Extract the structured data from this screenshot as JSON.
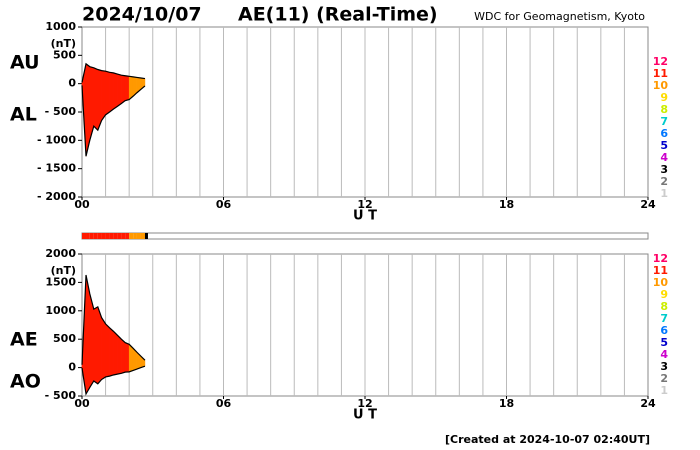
{
  "header": {
    "date": "2024/10/07",
    "title": "AE(11) (Real-Time)",
    "source": "WDC for Geomagnetism, Kyoto"
  },
  "footer": "[Created at 2024-10-07 02:40UT]",
  "legend": [
    {
      "value": 12,
      "color": "#ff0066"
    },
    {
      "value": 11,
      "color": "#ff1a00"
    },
    {
      "value": 10,
      "color": "#ff9900"
    },
    {
      "value": 9,
      "color": "#ffdd00"
    },
    {
      "value": 8,
      "color": "#ccee00"
    },
    {
      "value": 7,
      "color": "#00cccc"
    },
    {
      "value": 6,
      "color": "#0077ff"
    },
    {
      "value": 5,
      "color": "#0000cc"
    },
    {
      "value": 4,
      "color": "#cc00cc"
    },
    {
      "value": 3,
      "color": "#000000"
    },
    {
      "value": 2,
      "color": "#777777"
    },
    {
      "value": 1,
      "color": "#cccccc"
    }
  ],
  "chart_data": [
    {
      "type": "area",
      "ylabel": "(nT)",
      "xlabel": "U T",
      "x": [
        0,
        0.17,
        0.33,
        0.5,
        0.67,
        0.83,
        1,
        1.17,
        1.33,
        1.5,
        1.67,
        1.83,
        2,
        2.17,
        2.33,
        2.5,
        2.67
      ],
      "stations": [
        11,
        11,
        11,
        11,
        11,
        11,
        11,
        11,
        11,
        11,
        11,
        11,
        10,
        10,
        10,
        10,
        3
      ],
      "series": [
        {
          "name": "AU",
          "color": "#000000",
          "values": [
            20,
            350,
            300,
            280,
            250,
            230,
            220,
            200,
            190,
            170,
            150,
            140,
            130,
            120,
            110,
            100,
            90
          ]
        },
        {
          "name": "AL",
          "color": "#000000",
          "values": [
            -30,
            -1280,
            -1000,
            -750,
            -820,
            -650,
            -550,
            -500,
            -450,
            -400,
            -350,
            -300,
            -280,
            -220,
            -160,
            -100,
            -40
          ]
        }
      ],
      "xlim": [
        0,
        24
      ],
      "xticks": [
        {
          "value": 0,
          "label": "00"
        },
        {
          "value": 6,
          "label": "06"
        },
        {
          "value": 12,
          "label": "12"
        },
        {
          "value": 18,
          "label": "18"
        },
        {
          "value": 24,
          "label": "24"
        }
      ],
      "xgrid": [
        1,
        2,
        3,
        4,
        5,
        6,
        7,
        8,
        9,
        10,
        11,
        12,
        13,
        14,
        15,
        16,
        17,
        18,
        19,
        20,
        21,
        22,
        23
      ],
      "ylim": [
        -2000,
        1000
      ],
      "yticks": [
        {
          "value": -2000,
          "label": "- 2000"
        },
        {
          "value": -1500,
          "label": "- 1500"
        },
        {
          "value": -1000,
          "label": "- 1000"
        },
        {
          "value": -500,
          "label": "- 500"
        },
        0,
        500,
        1000
      ]
    },
    {
      "type": "area",
      "ylabel": "(nT)",
      "xlabel": "U T",
      "x": [
        0,
        0.17,
        0.33,
        0.5,
        0.67,
        0.83,
        1,
        1.17,
        1.33,
        1.5,
        1.67,
        1.83,
        2,
        2.17,
        2.33,
        2.5,
        2.67
      ],
      "series": [
        {
          "name": "AE",
          "color": "#000000",
          "values": [
            50,
            1630,
            1300,
            1030,
            1070,
            880,
            770,
            700,
            640,
            570,
            500,
            440,
            410,
            340,
            270,
            200,
            130
          ]
        },
        {
          "name": "AO",
          "color": "#000000",
          "values": [
            -5,
            -465,
            -350,
            -235,
            -285,
            -210,
            -165,
            -150,
            -130,
            -115,
            -100,
            -80,
            -75,
            -50,
            -25,
            0,
            25
          ]
        }
      ],
      "xlim": [
        0,
        24
      ],
      "xticks": [
        {
          "value": 0,
          "label": "00"
        },
        {
          "value": 6,
          "label": "06"
        },
        {
          "value": 12,
          "label": "12"
        },
        {
          "value": 18,
          "label": "18"
        },
        {
          "value": 24,
          "label": "24"
        }
      ],
      "xgrid": [
        1,
        2,
        3,
        4,
        5,
        6,
        7,
        8,
        9,
        10,
        11,
        12,
        13,
        14,
        15,
        16,
        17,
        18,
        19,
        20,
        21,
        22,
        23
      ],
      "ylim": [
        -500,
        2000
      ],
      "yticks": [
        {
          "value": -500,
          "label": "- 500"
        },
        0,
        500,
        1000,
        1500,
        2000
      ]
    }
  ]
}
